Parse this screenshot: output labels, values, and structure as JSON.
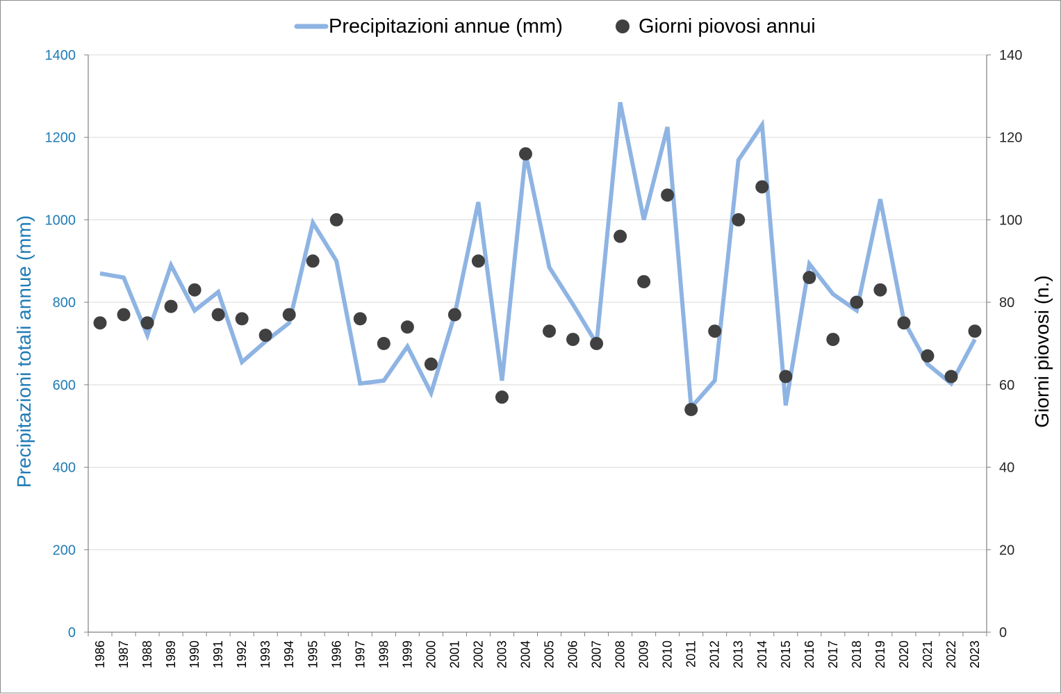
{
  "chart_data": {
    "type": "line",
    "legend_position": "top",
    "grid": true,
    "x": [
      "1986",
      "1987",
      "1988",
      "1989",
      "1990",
      "1991",
      "1992",
      "1993",
      "1994",
      "1995",
      "1996",
      "1997",
      "1998",
      "1999",
      "2000",
      "2001",
      "2002",
      "2003",
      "2004",
      "2005",
      "2006",
      "2007",
      "2008",
      "2009",
      "2010",
      "2011",
      "2012",
      "2013",
      "2014",
      "2015",
      "2016",
      "2017",
      "2018",
      "2019",
      "2020",
      "2021",
      "2022",
      "2023"
    ],
    "ylabel_left": "Precipitazioni  totali annue (mm)",
    "ylabel_right": "Giorni piovosi  (n.)",
    "ylim_left": [
      0,
      1400
    ],
    "ylim_right": [
      0,
      140
    ],
    "yticks_left": [
      "0",
      "200",
      "400",
      "600",
      "800",
      "1000",
      "1200",
      "1400"
    ],
    "yticks_right": [
      "0",
      "20",
      "40",
      "60",
      "80",
      "100",
      "120",
      "140"
    ],
    "series": [
      {
        "name": "Precipitazioni annue (mm)",
        "type": "line",
        "axis": "left",
        "color": "#8eb4e3",
        "values": [
          870,
          860,
          720,
          890,
          780,
          825,
          655,
          705,
          750,
          993,
          900,
          603,
          610,
          693,
          580,
          770,
          1043,
          610,
          1160,
          885,
          795,
          700,
          1285,
          1000,
          1225,
          545,
          610,
          1145,
          1230,
          550,
          893,
          820,
          780,
          1050,
          755,
          650,
          603,
          710
        ]
      },
      {
        "name": "Giorni piovosi annui",
        "type": "scatter",
        "axis": "right",
        "color": "#404040",
        "values": [
          75,
          77,
          75,
          79,
          83,
          77,
          76,
          72,
          77,
          90,
          100,
          76,
          70,
          74,
          65,
          77,
          90,
          57,
          116,
          73,
          71,
          70,
          96,
          85,
          106,
          54,
          73,
          100,
          108,
          62,
          86,
          71,
          80,
          83,
          75,
          67,
          62,
          73
        ]
      }
    ]
  }
}
